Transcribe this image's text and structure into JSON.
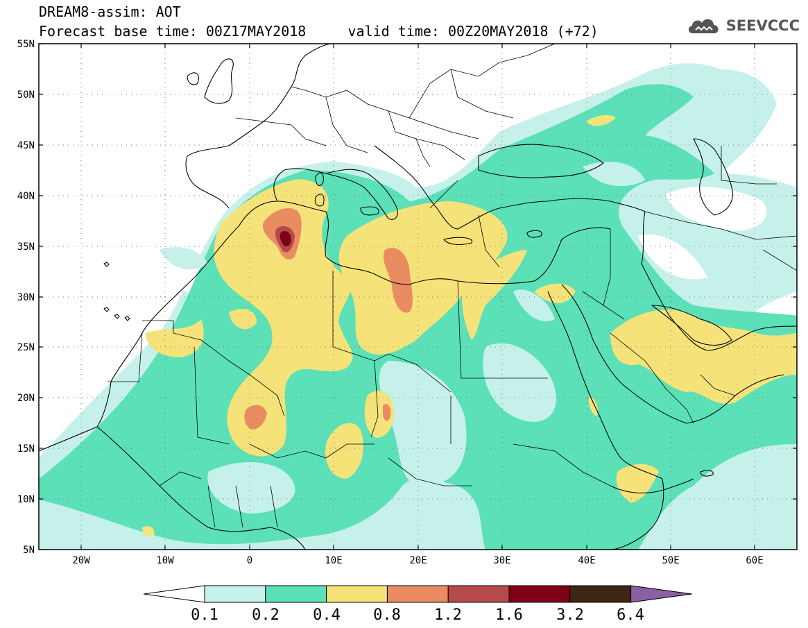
{
  "header": {
    "title_line1": "DREAM8-assim: AOT",
    "title_line2": "Forecast base time: 00Z17MAY2018     valid time: 00Z20MAY2018 (+72)",
    "brand": "SEEVCCC",
    "brand_icon": "cloud-icon"
  },
  "map": {
    "projection": "lat-lon",
    "lon_range": [
      -25,
      65
    ],
    "lat_range": [
      5,
      55
    ],
    "lat_ticks": [
      "5N",
      "10N",
      "15N",
      "20N",
      "25N",
      "30N",
      "35N",
      "40N",
      "45N",
      "50N",
      "55N"
    ],
    "lon_ticks": [
      "20W",
      "10W",
      "0",
      "10E",
      "20E",
      "30E",
      "40E",
      "50E",
      "60E"
    ],
    "gridlines": "dotted",
    "coastlines": true,
    "borders": true
  },
  "legend": {
    "labels": [
      "0.1",
      "0.2",
      "0.4",
      "0.8",
      "1.2",
      "1.6",
      "3.2",
      "6.4"
    ],
    "colors": [
      "#ffffff",
      "#c6f1ea",
      "#5be0b8",
      "#f5e37a",
      "#ea8c62",
      "#b64a4a",
      "#800018",
      "#3d2712",
      "#8a5fa3"
    ]
  }
}
